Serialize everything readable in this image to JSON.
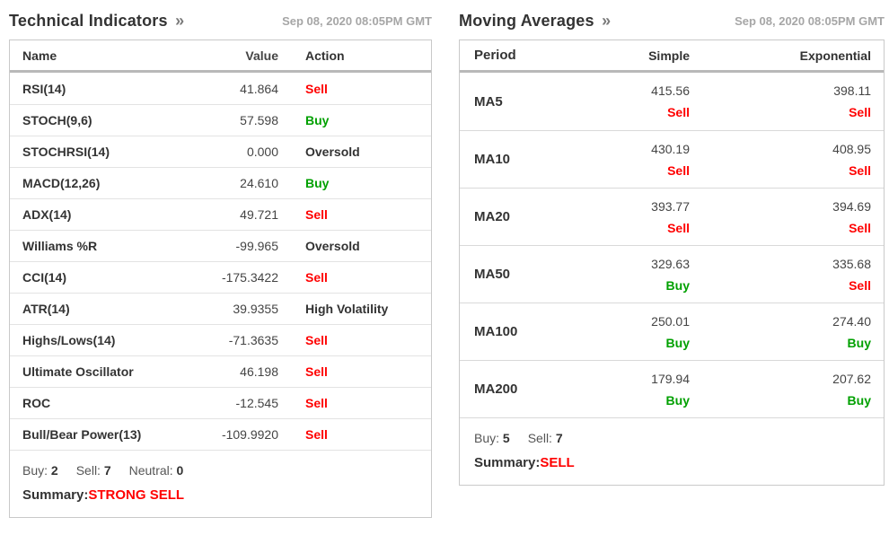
{
  "colors": {
    "buy": "#00a000",
    "sell": "#ff0000",
    "neutral": "#333333",
    "timestamp": "#a6a6a6"
  },
  "left_panel": {
    "title": "Technical Indicators",
    "arrow": "»",
    "timestamp": "Sep 08, 2020 08:05PM GMT",
    "columns": {
      "name": "Name",
      "value": "Value",
      "action": "Action"
    },
    "rows": [
      {
        "name": "RSI(14)",
        "value": "41.864",
        "action": "Sell",
        "type": "sell"
      },
      {
        "name": "STOCH(9,6)",
        "value": "57.598",
        "action": "Buy",
        "type": "buy"
      },
      {
        "name": "STOCHRSI(14)",
        "value": "0.000",
        "action": "Oversold",
        "type": "neutral"
      },
      {
        "name": "MACD(12,26)",
        "value": "24.610",
        "action": "Buy",
        "type": "buy"
      },
      {
        "name": "ADX(14)",
        "value": "49.721",
        "action": "Sell",
        "type": "sell"
      },
      {
        "name": "Williams %R",
        "value": "-99.965",
        "action": "Oversold",
        "type": "neutral"
      },
      {
        "name": "CCI(14)",
        "value": "-175.3422",
        "action": "Sell",
        "type": "sell"
      },
      {
        "name": "ATR(14)",
        "value": "39.9355",
        "action": "High Volatility",
        "type": "neutral"
      },
      {
        "name": "Highs/Lows(14)",
        "value": "-71.3635",
        "action": "Sell",
        "type": "sell"
      },
      {
        "name": "Ultimate Oscillator",
        "value": "46.198",
        "action": "Sell",
        "type": "sell"
      },
      {
        "name": "ROC",
        "value": "-12.545",
        "action": "Sell",
        "type": "sell"
      },
      {
        "name": "Bull/Bear Power(13)",
        "value": "-109.9920",
        "action": "Sell",
        "type": "sell"
      }
    ],
    "counts": [
      {
        "label": "Buy:",
        "value": "2"
      },
      {
        "label": "Sell:",
        "value": "7"
      },
      {
        "label": "Neutral:",
        "value": "0"
      }
    ],
    "summary_label": "Summary:",
    "summary_value": "STRONG SELL"
  },
  "right_panel": {
    "title": "Moving Averages",
    "arrow": "»",
    "timestamp": "Sep 08, 2020 08:05PM GMT",
    "columns": {
      "period": "Period",
      "simple": "Simple",
      "exponential": "Exponential"
    },
    "rows": [
      {
        "period": "MA5",
        "simple": {
          "value": "415.56",
          "action": "Sell",
          "type": "sell"
        },
        "exponential": {
          "value": "398.11",
          "action": "Sell",
          "type": "sell"
        }
      },
      {
        "period": "MA10",
        "simple": {
          "value": "430.19",
          "action": "Sell",
          "type": "sell"
        },
        "exponential": {
          "value": "408.95",
          "action": "Sell",
          "type": "sell"
        }
      },
      {
        "period": "MA20",
        "simple": {
          "value": "393.77",
          "action": "Sell",
          "type": "sell"
        },
        "exponential": {
          "value": "394.69",
          "action": "Sell",
          "type": "sell"
        }
      },
      {
        "period": "MA50",
        "simple": {
          "value": "329.63",
          "action": "Buy",
          "type": "buy"
        },
        "exponential": {
          "value": "335.68",
          "action": "Sell",
          "type": "sell"
        }
      },
      {
        "period": "MA100",
        "simple": {
          "value": "250.01",
          "action": "Buy",
          "type": "buy"
        },
        "exponential": {
          "value": "274.40",
          "action": "Buy",
          "type": "buy"
        }
      },
      {
        "period": "MA200",
        "simple": {
          "value": "179.94",
          "action": "Buy",
          "type": "buy"
        },
        "exponential": {
          "value": "207.62",
          "action": "Buy",
          "type": "buy"
        }
      }
    ],
    "counts": [
      {
        "label": "Buy:",
        "value": "5"
      },
      {
        "label": "Sell:",
        "value": "7"
      }
    ],
    "summary_label": "Summary:",
    "summary_value": "SELL"
  }
}
